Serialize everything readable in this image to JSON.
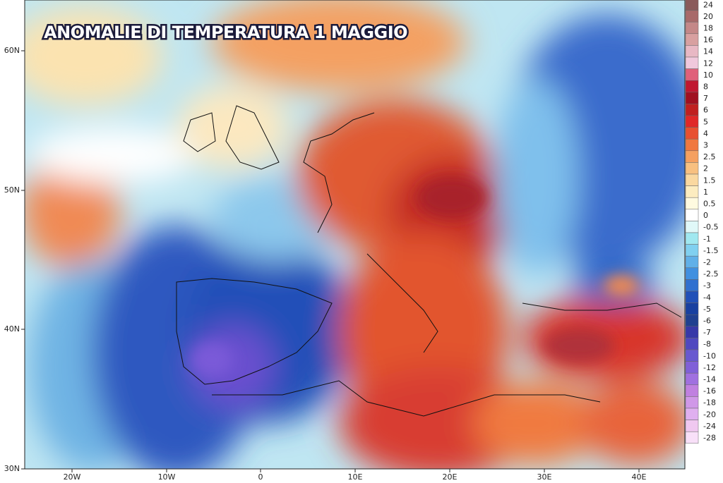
{
  "title": "ANOMALIE DI TEMPERATURA 1 MAGGIO",
  "lat_labels": [
    "60N",
    "50N",
    "40N",
    "30N"
  ],
  "lon_labels": [
    "20W",
    "10W",
    "0",
    "10E",
    "20E",
    "30E",
    "40E"
  ],
  "legend": [
    {
      "label": "24",
      "color": "#8a5a5a"
    },
    {
      "label": "20",
      "color": "#a86a6a"
    },
    {
      "label": "18",
      "color": "#c48888"
    },
    {
      "label": "16",
      "color": "#d8a0a0"
    },
    {
      "label": "14",
      "color": "#e8b8c4"
    },
    {
      "label": "12",
      "color": "#f0c8dc"
    },
    {
      "label": "10",
      "color": "#e0607a"
    },
    {
      "label": "8",
      "color": "#c01830"
    },
    {
      "label": "7",
      "color": "#a01020"
    },
    {
      "label": "6",
      "color": "#c02020"
    },
    {
      "label": "5",
      "color": "#e02828"
    },
    {
      "label": "4",
      "color": "#e85030"
    },
    {
      "label": "3",
      "color": "#f07840"
    },
    {
      "label": "2.5",
      "color": "#f5a060"
    },
    {
      "label": "2",
      "color": "#f8c080"
    },
    {
      "label": "1.5",
      "color": "#fad8a0"
    },
    {
      "label": "1",
      "color": "#fcecc0"
    },
    {
      "label": "0.5",
      "color": "#fffae0"
    },
    {
      "label": "0",
      "color": "#ffffff"
    },
    {
      "label": "-0.5",
      "color": "#e0f8f8"
    },
    {
      "label": "-1",
      "color": "#a0e8f0"
    },
    {
      "label": "-1.5",
      "color": "#80d0f0"
    },
    {
      "label": "-2",
      "color": "#60b0e8"
    },
    {
      "label": "-2.5",
      "color": "#4090e0"
    },
    {
      "label": "-3",
      "color": "#3070d0"
    },
    {
      "label": "-4",
      "color": "#2050b8"
    },
    {
      "label": "-5",
      "color": "#1840a0"
    },
    {
      "label": "-6",
      "color": "#204090"
    },
    {
      "label": "-7",
      "color": "#3838a8"
    },
    {
      "label": "-8",
      "color": "#5048c0"
    },
    {
      "label": "-10",
      "color": "#6858d0"
    },
    {
      "label": "-12",
      "color": "#8060d8"
    },
    {
      "label": "-14",
      "color": "#a070e0"
    },
    {
      "label": "-16",
      "color": "#c080e0"
    },
    {
      "label": "-18",
      "color": "#d098e8"
    },
    {
      "label": "-20",
      "color": "#e0b0f0"
    },
    {
      "label": "-24",
      "color": "#f0c8f0"
    },
    {
      "label": "-28",
      "color": "#f8e0f8"
    }
  ]
}
